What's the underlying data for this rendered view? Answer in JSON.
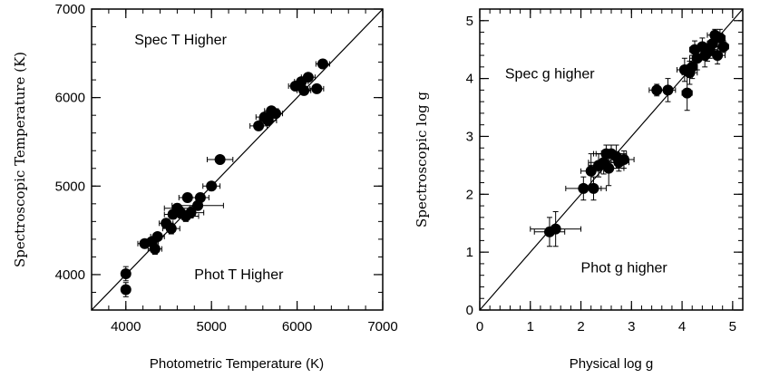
{
  "chart_data": [
    {
      "type": "scatter",
      "xlabel": "Photometric Temperature (K)",
      "ylabel": "Spectroscopic Temperature (K)",
      "xlim": [
        3600,
        7000
      ],
      "ylim": [
        3600,
        7000
      ],
      "xticks": [
        4000,
        5000,
        6000,
        7000
      ],
      "yticks": [
        4000,
        5000,
        6000,
        7000
      ],
      "x_tick_labels": [
        "4000",
        "5000",
        "6000",
        "7000"
      ],
      "y_tick_labels": [
        "4000",
        "5000",
        "6000",
        "7000"
      ],
      "xminor": 200,
      "yminor": 200,
      "one_to_one_line": true,
      "annotations": [
        {
          "text": "Spec T Higher",
          "x": 4100,
          "y": 6600
        },
        {
          "text": "Phot T Higher",
          "x": 4800,
          "y": 3950
        }
      ],
      "points": [
        {
          "x": 4000,
          "y": 4010,
          "xerr": 0,
          "yerr": 80
        },
        {
          "x": 4000,
          "y": 3830,
          "xerr": 0,
          "yerr": 80
        },
        {
          "x": 4220,
          "y": 4350,
          "xerr": 80,
          "yerr": 40
        },
        {
          "x": 4300,
          "y": 4370,
          "xerr": 80,
          "yerr": 40
        },
        {
          "x": 4340,
          "y": 4290,
          "xerr": 80,
          "yerr": 60
        },
        {
          "x": 4370,
          "y": 4430,
          "xerr": 80,
          "yerr": 40
        },
        {
          "x": 4470,
          "y": 4580,
          "xerr": 80,
          "yerr": 50
        },
        {
          "x": 4530,
          "y": 4520,
          "xerr": 100,
          "yerr": 60
        },
        {
          "x": 4550,
          "y": 4680,
          "xerr": 100,
          "yerr": 50
        },
        {
          "x": 4600,
          "y": 4750,
          "xerr": 150,
          "yerr": 50
        },
        {
          "x": 4640,
          "y": 4700,
          "xerr": 100,
          "yerr": 60
        },
        {
          "x": 4700,
          "y": 4660,
          "xerr": 150,
          "yerr": 60
        },
        {
          "x": 4720,
          "y": 4870,
          "xerr": 100,
          "yerr": 50
        },
        {
          "x": 4760,
          "y": 4700,
          "xerr": 150,
          "yerr": 60
        },
        {
          "x": 4840,
          "y": 4780,
          "xerr": 300,
          "yerr": 50
        },
        {
          "x": 4870,
          "y": 4870,
          "xerr": 100,
          "yerr": 50
        },
        {
          "x": 5000,
          "y": 5000,
          "xerr": 100,
          "yerr": 40
        },
        {
          "x": 5100,
          "y": 5300,
          "xerr": 150,
          "yerr": 40
        },
        {
          "x": 5550,
          "y": 5680,
          "xerr": 100,
          "yerr": 40
        },
        {
          "x": 5620,
          "y": 5780,
          "xerr": 100,
          "yerr": 40
        },
        {
          "x": 5660,
          "y": 5740,
          "xerr": 100,
          "yerr": 40
        },
        {
          "x": 5700,
          "y": 5850,
          "xerr": 80,
          "yerr": 40
        },
        {
          "x": 5750,
          "y": 5820,
          "xerr": 80,
          "yerr": 40
        },
        {
          "x": 5980,
          "y": 6130,
          "xerr": 80,
          "yerr": 40
        },
        {
          "x": 6050,
          "y": 6180,
          "xerr": 80,
          "yerr": 40
        },
        {
          "x": 6080,
          "y": 6080,
          "xerr": 80,
          "yerr": 40
        },
        {
          "x": 6130,
          "y": 6230,
          "xerr": 80,
          "yerr": 40
        },
        {
          "x": 6230,
          "y": 6100,
          "xerr": 80,
          "yerr": 40
        },
        {
          "x": 6300,
          "y": 6380,
          "xerr": 80,
          "yerr": 50
        }
      ]
    },
    {
      "type": "scatter",
      "xlabel": "Physical log g",
      "ylabel": "Spectroscopic  log  g",
      "xlim": [
        0,
        5.2
      ],
      "ylim": [
        0,
        5.2
      ],
      "xticks": [
        0,
        1,
        2,
        3,
        4,
        5
      ],
      "yticks": [
        0,
        1,
        2,
        3,
        4,
        5
      ],
      "x_tick_labels": [
        "0",
        "1",
        "2",
        "3",
        "4",
        "5"
      ],
      "y_tick_labels": [
        "0",
        "1",
        "2",
        "3",
        "4",
        "5"
      ],
      "xminor": 0.2,
      "yminor": 0.2,
      "one_to_one_line": true,
      "annotations": [
        {
          "text": "Spec g higher",
          "x": 0.5,
          "y": 4.0
        },
        {
          "text": "Phot g higher",
          "x": 2.0,
          "y": 0.65
        }
      ],
      "points": [
        {
          "x": 1.38,
          "y": 1.35,
          "xerr": 0.3,
          "yerr": 0.25
        },
        {
          "x": 1.5,
          "y": 1.4,
          "xerr": 0.5,
          "yerr": 0.3
        },
        {
          "x": 2.05,
          "y": 2.1,
          "xerr": 0.35,
          "yerr": 0.2
        },
        {
          "x": 2.2,
          "y": 2.4,
          "xerr": 0.2,
          "yerr": 0.3
        },
        {
          "x": 2.25,
          "y": 2.1,
          "xerr": 0.25,
          "yerr": 0.2
        },
        {
          "x": 2.35,
          "y": 2.5,
          "xerr": 0.2,
          "yerr": 0.2
        },
        {
          "x": 2.45,
          "y": 2.55,
          "xerr": 0.3,
          "yerr": 0.2
        },
        {
          "x": 2.5,
          "y": 2.7,
          "xerr": 0.25,
          "yerr": 0.15
        },
        {
          "x": 2.55,
          "y": 2.45,
          "xerr": 0.3,
          "yerr": 0.3
        },
        {
          "x": 2.6,
          "y": 2.7,
          "xerr": 0.3,
          "yerr": 0.15
        },
        {
          "x": 2.7,
          "y": 2.65,
          "xerr": 0.2,
          "yerr": 0.2
        },
        {
          "x": 2.75,
          "y": 2.55,
          "xerr": 0.2,
          "yerr": 0.15
        },
        {
          "x": 2.85,
          "y": 2.6,
          "xerr": 0.2,
          "yerr": 0.15
        },
        {
          "x": 3.5,
          "y": 3.8,
          "xerr": 0.15,
          "yerr": 0.1
        },
        {
          "x": 3.72,
          "y": 3.8,
          "xerr": 0.15,
          "yerr": 0.2
        },
        {
          "x": 4.05,
          "y": 4.15,
          "xerr": 0.15,
          "yerr": 0.2
        },
        {
          "x": 4.1,
          "y": 3.75,
          "xerr": 0.1,
          "yerr": 0.3
        },
        {
          "x": 4.15,
          "y": 4.1,
          "xerr": 0.15,
          "yerr": 0.2
        },
        {
          "x": 4.2,
          "y": 4.2,
          "xerr": 0.1,
          "yerr": 0.2
        },
        {
          "x": 4.25,
          "y": 4.5,
          "xerr": 0.1,
          "yerr": 0.15
        },
        {
          "x": 4.3,
          "y": 4.35,
          "xerr": 0.15,
          "yerr": 0.2
        },
        {
          "x": 4.4,
          "y": 4.55,
          "xerr": 0.15,
          "yerr": 0.15
        },
        {
          "x": 4.45,
          "y": 4.4,
          "xerr": 0.2,
          "yerr": 0.2
        },
        {
          "x": 4.5,
          "y": 4.45,
          "xerr": 0.1,
          "yerr": 0.15
        },
        {
          "x": 4.55,
          "y": 4.5,
          "xerr": 0.15,
          "yerr": 0.15
        },
        {
          "x": 4.6,
          "y": 4.6,
          "xerr": 0.1,
          "yerr": 0.15
        },
        {
          "x": 4.65,
          "y": 4.75,
          "xerr": 0.15,
          "yerr": 0.1
        },
        {
          "x": 4.7,
          "y": 4.4,
          "xerr": 0.15,
          "yerr": 0.15
        },
        {
          "x": 4.75,
          "y": 4.7,
          "xerr": 0.1,
          "yerr": 0.15
        },
        {
          "x": 4.82,
          "y": 4.55,
          "xerr": 0.1,
          "yerr": 0.1
        }
      ]
    }
  ]
}
